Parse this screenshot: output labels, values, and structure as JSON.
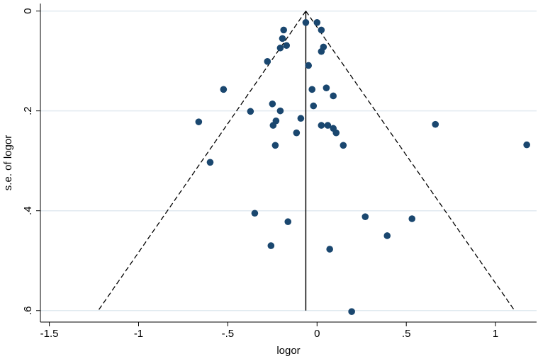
{
  "chart_data": {
    "type": "scatter",
    "x_label": "logor",
    "y_label": "s.e. of logor",
    "color": "#1a476f",
    "x": [
      -0.063,
      0.0,
      0.024,
      -0.187,
      -0.194,
      -0.171,
      -0.206,
      0.036,
      0.024,
      -0.278,
      -0.048,
      -0.524,
      -0.028,
      0.052,
      0.091,
      -0.25,
      -0.02,
      -0.373,
      -0.206,
      -0.663,
      -0.091,
      -0.23,
      -0.246,
      0.024,
      0.06,
      0.091,
      0.107,
      -0.115,
      0.663,
      -0.234,
      0.147,
      1.175,
      -0.599,
      -0.349,
      -0.163,
      0.27,
      0.532,
      0.393,
      -0.258,
      0.071,
      0.194
    ],
    "values": [
      0.023,
      0.023,
      0.038,
      0.038,
      0.055,
      0.069,
      0.074,
      0.072,
      0.081,
      0.101,
      0.109,
      0.157,
      0.157,
      0.154,
      0.17,
      0.186,
      0.19,
      0.201,
      0.2,
      0.222,
      0.215,
      0.22,
      0.229,
      0.229,
      0.229,
      0.235,
      0.244,
      0.244,
      0.227,
      0.269,
      0.269,
      0.268,
      0.303,
      0.405,
      0.422,
      0.412,
      0.416,
      0.45,
      0.47,
      0.477,
      0.602
    ],
    "reference_line": -0.063,
    "funnel_lines": [
      {
        "x": [
          -0.063,
          -1.226
        ],
        "y": [
          0,
          0.6
        ]
      },
      {
        "x": [
          -0.063,
          1.107
        ],
        "y": [
          0,
          0.6
        ]
      }
    ],
    "xlim": [
      -1.55,
      1.23
    ],
    "ylim": [
      -0.015,
      0.623
    ],
    "y_reversed": true,
    "xticks": [
      -1.5,
      -1,
      {
        "value": -0.5,
        "label": "-.5"
      },
      0,
      {
        "value": 0.5,
        "label": ".5"
      },
      1
    ],
    "yticks": [
      0,
      {
        "value": 0.2,
        "label": ".2"
      },
      {
        "value": 0.4,
        "label": ".4"
      },
      {
        "value": 0.6,
        "label": ".6"
      }
    ],
    "grid": true
  }
}
